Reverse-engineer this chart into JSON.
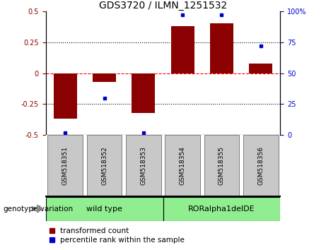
{
  "title": "GDS3720 / ILMN_1251532",
  "categories": [
    "GSM518351",
    "GSM518352",
    "GSM518353",
    "GSM518354",
    "GSM518355",
    "GSM518356"
  ],
  "red_bars": [
    -0.37,
    -0.07,
    -0.32,
    0.38,
    0.4,
    0.08
  ],
  "blue_dots": [
    2.0,
    30.0,
    2.0,
    97.0,
    97.0,
    72.0
  ],
  "ylim_left": [
    -0.5,
    0.5
  ],
  "ylim_right": [
    0,
    100
  ],
  "yticks_left": [
    -0.5,
    -0.25,
    0,
    0.25,
    0.5
  ],
  "ytick_left_labels": [
    "-0.5",
    "-0.25",
    "0",
    "0.25",
    "0.5"
  ],
  "yticks_right": [
    0,
    25,
    50,
    75,
    100
  ],
  "ytick_right_labels": [
    "0",
    "25",
    "50",
    "75",
    "100%"
  ],
  "hline_positions": [
    -0.25,
    0.0,
    0.25
  ],
  "hline_styles": [
    "dotted",
    "dashed",
    "dotted"
  ],
  "hline_colors": [
    "black",
    "red",
    "black"
  ],
  "group_labels": [
    "wild type",
    "RORalpha1delDE"
  ],
  "group_ranges": [
    [
      0,
      3
    ],
    [
      3,
      6
    ]
  ],
  "group_color_light": "#90EE90",
  "group_color_dark": "#32CD32",
  "sample_box_color": "#C8C8C8",
  "genotype_label": "genotype/variation",
  "bar_color": "#8B0000",
  "dot_color": "#0000CD",
  "legend_red": "transformed count",
  "legend_blue": "percentile rank within the sample",
  "bar_width": 0.6,
  "title_fontsize": 10,
  "tick_fontsize": 7,
  "label_fontsize": 7.5,
  "cat_fontsize": 6.5
}
